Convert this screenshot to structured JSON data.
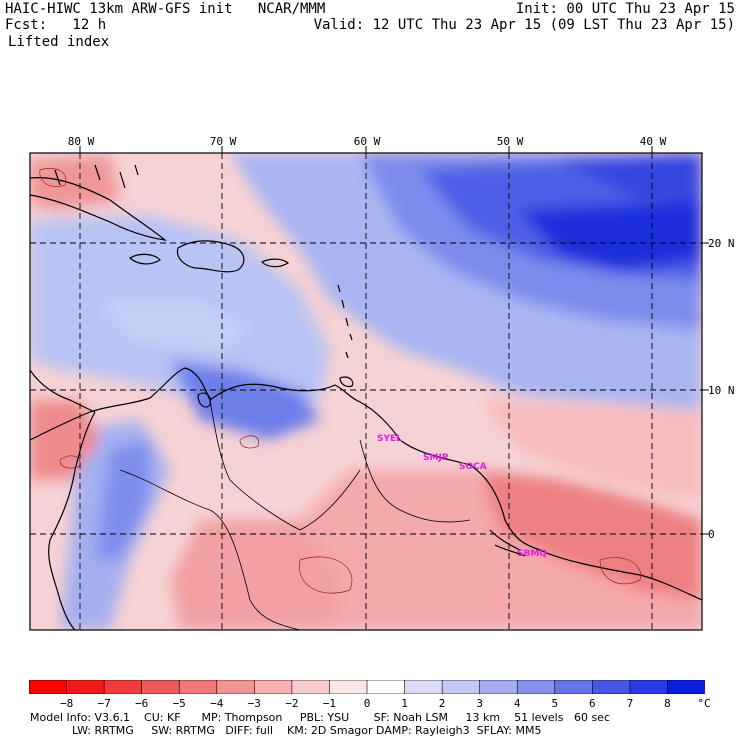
{
  "header": {
    "model": "HAIC-HIWC 13km ARW-GFS init   NCAR/MMM",
    "init": "Init: 00 UTC Thu 23 Apr 15",
    "fcst": "Fcst:   12 h",
    "valid": "Valid: 12 UTC Thu 23 Apr 15 (09 LST Thu 23 Apr 15)",
    "field": "Lifted index"
  },
  "map": {
    "lon_labels": [
      "80 W",
      "70 W",
      "60 W",
      "50 W",
      "40 W"
    ],
    "lat_labels": [
      "20 N",
      "10 N",
      "0"
    ],
    "stations": [
      "SYEL",
      "SMJP",
      "SOCA",
      "SBMQ"
    ],
    "colors": {
      "strong_blue": "#1e2fdc",
      "mid_blue": "#5a6de8",
      "light_blue": "#a9b6f2",
      "pale": "#f3f0fb",
      "light_red": "#f7c5c6",
      "mid_red": "#ef8a8e",
      "strong_red": "#e8464c",
      "station": "#e020e0"
    }
  },
  "colorbar": {
    "tick_labels": [
      "−8",
      "−7",
      "−6",
      "−5",
      "−4",
      "−3",
      "−2",
      "−1",
      "0",
      "1",
      "2",
      "3",
      "4",
      "5",
      "6",
      "7",
      "8"
    ],
    "unit": "°C",
    "colors": [
      "#ff0000",
      "#f51a1a",
      "#ee3b3b",
      "#ec5a5a",
      "#f07878",
      "#f39494",
      "#f6b0b0",
      "#f9cccc",
      "#fce6e6",
      "#ffffff",
      "#dcdcf7",
      "#c3c8f4",
      "#a5adf0",
      "#8591ec",
      "#6575e8",
      "#4757e4",
      "#2a3be2",
      "#0a1edc"
    ]
  },
  "model_info": {
    "line1": "Model Info: V3.6.1    CU: KF      MP: Thompson     PBL: YSU       SF: Noah LSM     13 km    51 levels   60 sec",
    "line2": "            LW: RRTMG     SW: RRTMG   DIFF: full    KM: 2D Smagor DAMP: Rayleigh3  SFLAY: MM5"
  }
}
